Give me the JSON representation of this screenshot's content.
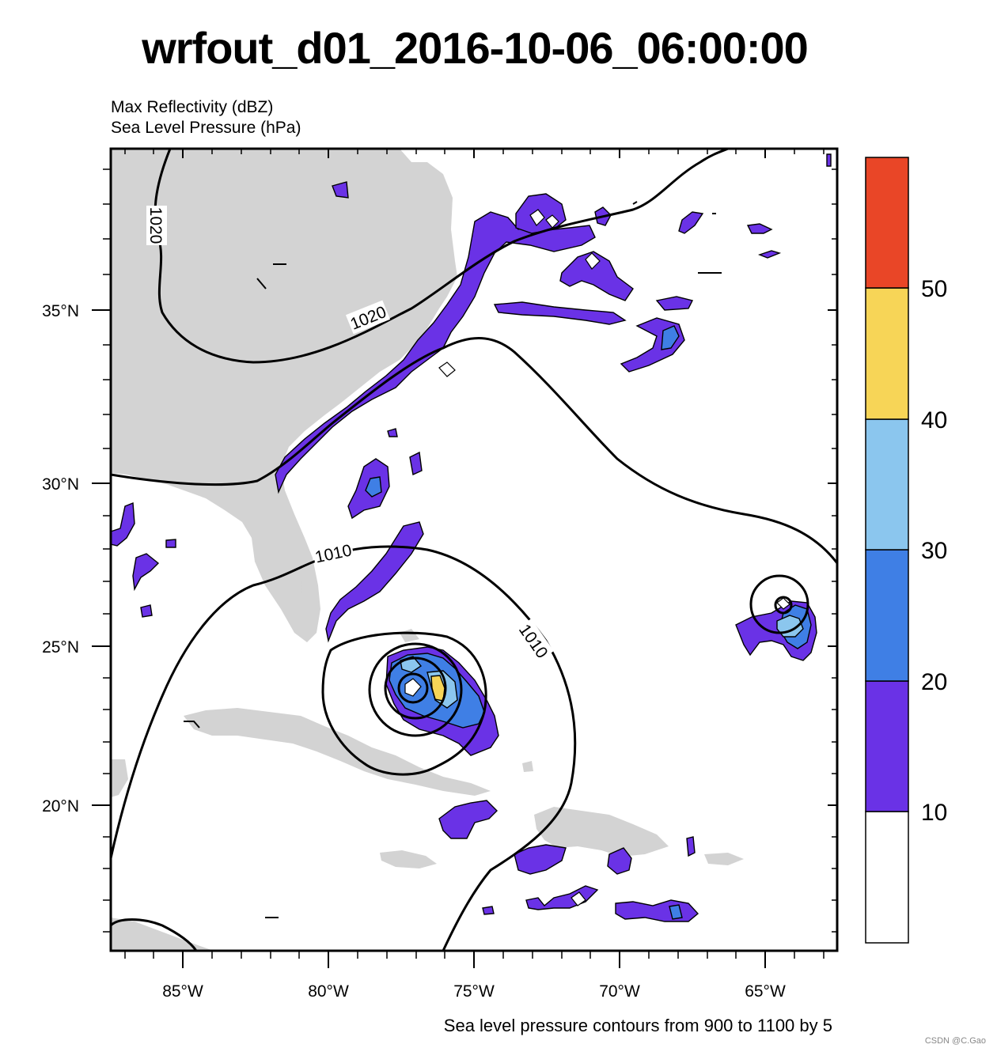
{
  "title": "wrfout_d01_2016-10-06_06:00:00",
  "left_string_1": "Max Reflectivity (dBZ)",
  "left_string_2": "Sea Level Pressure (hPa)",
  "footer": "Sea level pressure contours from 900 to 1100 by 5",
  "credit": "CSDN @C.Gao",
  "map": {
    "lon_range": [
      -87.5,
      -62.5
    ],
    "lat_range": [
      15.5,
      39.5
    ],
    "lon_ticks": [
      {
        "value": -85,
        "label": "85°W"
      },
      {
        "value": -80,
        "label": "80°W"
      },
      {
        "value": -75,
        "label": "75°W"
      },
      {
        "value": -70,
        "label": "70°W"
      },
      {
        "value": -65,
        "label": "65°W"
      }
    ],
    "lat_ticks": [
      {
        "value": 35,
        "label": "35°N"
      },
      {
        "value": 30,
        "label": "30°N"
      },
      {
        "value": 25,
        "label": "25°N"
      },
      {
        "value": 20,
        "label": "20°N"
      }
    ],
    "land_color": "#d3d3d3",
    "contour_labels": [
      "1020",
      "1020",
      "1010",
      "1010"
    ]
  },
  "colorbar": {
    "levels": [
      "10",
      "20",
      "30",
      "40",
      "50"
    ],
    "colors": [
      "#ffffff",
      "#6a32e6",
      "#3f7fe5",
      "#8bc6ee",
      "#f7d557",
      "#e94627"
    ]
  }
}
